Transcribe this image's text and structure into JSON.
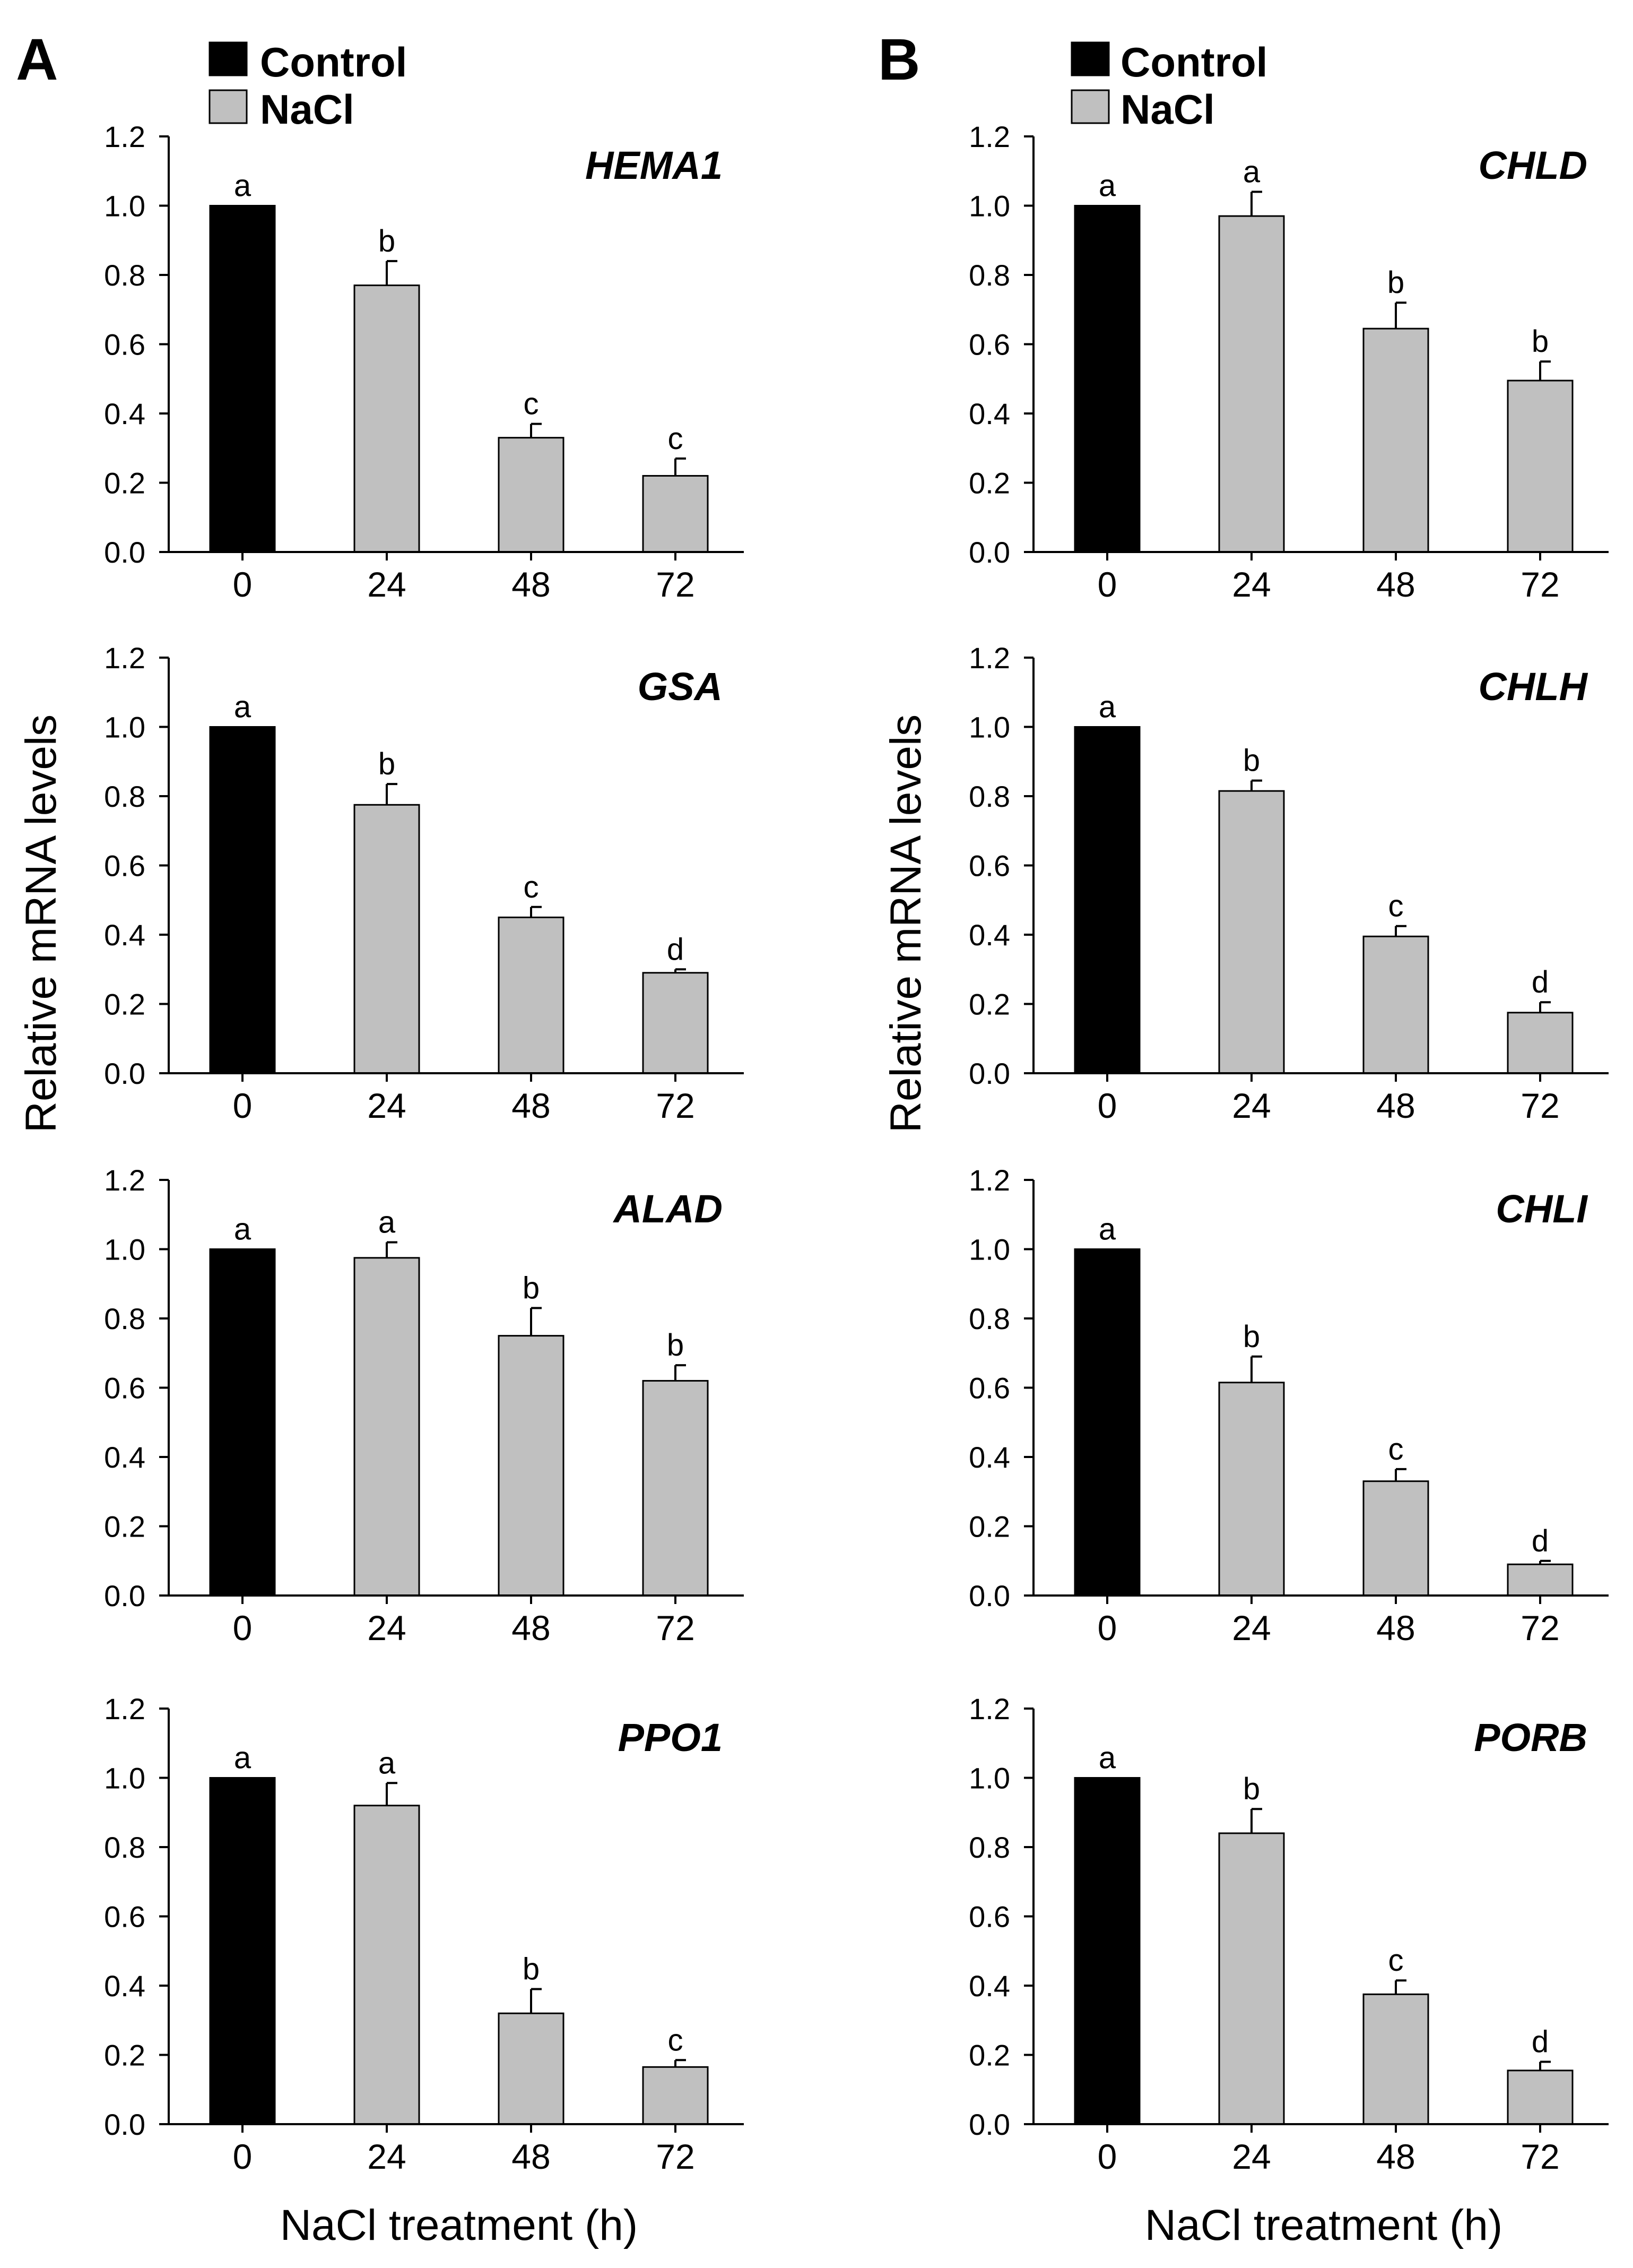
{
  "figure": {
    "xlabel": "NaCl treatment (h)",
    "ylabel": "Relative mRNA levels",
    "legend": [
      {
        "label": "Control",
        "color": "#000000"
      },
      {
        "label": "NaCl",
        "color": "#c0c0c0"
      }
    ],
    "y_ticks": [
      "0.0",
      "0.2",
      "0.4",
      "0.6",
      "0.8",
      "1.0",
      "1.2"
    ]
  },
  "panels": [
    {
      "letter": "A",
      "legend": [
        "Control",
        "NaCl"
      ],
      "xlabel": "NaCl treatment (h)",
      "ylabel": "Relative mRNA levels"
    },
    {
      "letter": "B",
      "legend": [
        "Control",
        "NaCl"
      ],
      "xlabel": "NaCl treatment (h)",
      "ylabel": "Relative mRNA levels"
    }
  ],
  "chart_data": [
    {
      "type": "bar",
      "panel": "A",
      "title": "HEMA1",
      "categories": [
        "0",
        "24",
        "48",
        "72"
      ],
      "series": [
        {
          "name": "Control",
          "values": [
            1.0,
            null,
            null,
            null
          ]
        },
        {
          "name": "NaCl",
          "values": [
            null,
            0.77,
            0.33,
            0.22
          ]
        }
      ],
      "values": [
        1.0,
        0.77,
        0.33,
        0.22
      ],
      "errors": [
        0,
        0.07,
        0.04,
        0.05
      ],
      "letters": [
        "a",
        "b",
        "c",
        "c"
      ],
      "ylim": [
        0,
        1.2
      ],
      "xlabel": "",
      "ylabel": "Relative mRNA levels"
    },
    {
      "type": "bar",
      "panel": "A",
      "title": "GSA",
      "categories": [
        "0",
        "24",
        "48",
        "72"
      ],
      "series": [
        {
          "name": "Control",
          "values": [
            1.0,
            null,
            null,
            null
          ]
        },
        {
          "name": "NaCl",
          "values": [
            null,
            0.775,
            0.45,
            0.29
          ]
        }
      ],
      "values": [
        1.0,
        0.775,
        0.45,
        0.29
      ],
      "errors": [
        0,
        0.06,
        0.03,
        0.01
      ],
      "letters": [
        "a",
        "b",
        "c",
        "d"
      ],
      "ylim": [
        0,
        1.2
      ],
      "xlabel": "",
      "ylabel": "Relative mRNA levels"
    },
    {
      "type": "bar",
      "panel": "A",
      "title": "ALAD",
      "categories": [
        "0",
        "24",
        "48",
        "72"
      ],
      "series": [
        {
          "name": "Control",
          "values": [
            1.0,
            null,
            null,
            null
          ]
        },
        {
          "name": "NaCl",
          "values": [
            null,
            0.975,
            0.75,
            0.62
          ]
        }
      ],
      "values": [
        1.0,
        0.975,
        0.75,
        0.62
      ],
      "errors": [
        0,
        0.045,
        0.08,
        0.045
      ],
      "letters": [
        "a",
        "a",
        "b",
        "b"
      ],
      "ylim": [
        0,
        1.2
      ],
      "xlabel": "",
      "ylabel": "Relative mRNA levels"
    },
    {
      "type": "bar",
      "panel": "A",
      "title": "PPO1",
      "categories": [
        "0",
        "24",
        "48",
        "72"
      ],
      "series": [
        {
          "name": "Control",
          "values": [
            1.0,
            null,
            null,
            null
          ]
        },
        {
          "name": "NaCl",
          "values": [
            null,
            0.92,
            0.32,
            0.165
          ]
        }
      ],
      "values": [
        1.0,
        0.92,
        0.32,
        0.165
      ],
      "errors": [
        0,
        0.065,
        0.07,
        0.02
      ],
      "letters": [
        "a",
        "a",
        "b",
        "c"
      ],
      "ylim": [
        0,
        1.2
      ],
      "xlabel": "NaCl treatment (h)",
      "ylabel": "Relative mRNA levels"
    },
    {
      "type": "bar",
      "panel": "B",
      "title": "CHLD",
      "categories": [
        "0",
        "24",
        "48",
        "72"
      ],
      "series": [
        {
          "name": "Control",
          "values": [
            1.0,
            null,
            null,
            null
          ]
        },
        {
          "name": "NaCl",
          "values": [
            null,
            0.97,
            0.645,
            0.495
          ]
        }
      ],
      "values": [
        1.0,
        0.97,
        0.645,
        0.495
      ],
      "errors": [
        0,
        0.07,
        0.075,
        0.055
      ],
      "letters": [
        "a",
        "a",
        "b",
        "b"
      ],
      "ylim": [
        0,
        1.2
      ],
      "xlabel": "",
      "ylabel": "Relative mRNA levels"
    },
    {
      "type": "bar",
      "panel": "B",
      "title": "CHLH",
      "categories": [
        "0",
        "24",
        "48",
        "72"
      ],
      "series": [
        {
          "name": "Control",
          "values": [
            1.0,
            null,
            null,
            null
          ]
        },
        {
          "name": "NaCl",
          "values": [
            null,
            0.815,
            0.395,
            0.175
          ]
        }
      ],
      "values": [
        1.0,
        0.815,
        0.395,
        0.175
      ],
      "errors": [
        0,
        0.03,
        0.03,
        0.03
      ],
      "letters": [
        "a",
        "b",
        "c",
        "d"
      ],
      "ylim": [
        0,
        1.2
      ],
      "xlabel": "",
      "ylabel": "Relative mRNA levels"
    },
    {
      "type": "bar",
      "panel": "B",
      "title": "CHLI",
      "categories": [
        "0",
        "24",
        "48",
        "72"
      ],
      "series": [
        {
          "name": "Control",
          "values": [
            1.0,
            null,
            null,
            null
          ]
        },
        {
          "name": "NaCl",
          "values": [
            null,
            0.615,
            0.33,
            0.09
          ]
        }
      ],
      "values": [
        1.0,
        0.615,
        0.33,
        0.09
      ],
      "errors": [
        0,
        0.075,
        0.035,
        0.01
      ],
      "letters": [
        "a",
        "b",
        "c",
        "d"
      ],
      "ylim": [
        0,
        1.2
      ],
      "xlabel": "",
      "ylabel": "Relative mRNA levels"
    },
    {
      "type": "bar",
      "panel": "B",
      "title": "PORB",
      "categories": [
        "0",
        "24",
        "48",
        "72"
      ],
      "series": [
        {
          "name": "Control",
          "values": [
            1.0,
            null,
            null,
            null
          ]
        },
        {
          "name": "NaCl",
          "values": [
            null,
            0.84,
            0.375,
            0.155
          ]
        }
      ],
      "values": [
        1.0,
        0.84,
        0.375,
        0.155
      ],
      "errors": [
        0,
        0.07,
        0.04,
        0.025
      ],
      "letters": [
        "a",
        "b",
        "c",
        "d"
      ],
      "ylim": [
        0,
        1.2
      ],
      "xlabel": "NaCl treatment (h)",
      "ylabel": "Relative mRNA levels"
    }
  ]
}
